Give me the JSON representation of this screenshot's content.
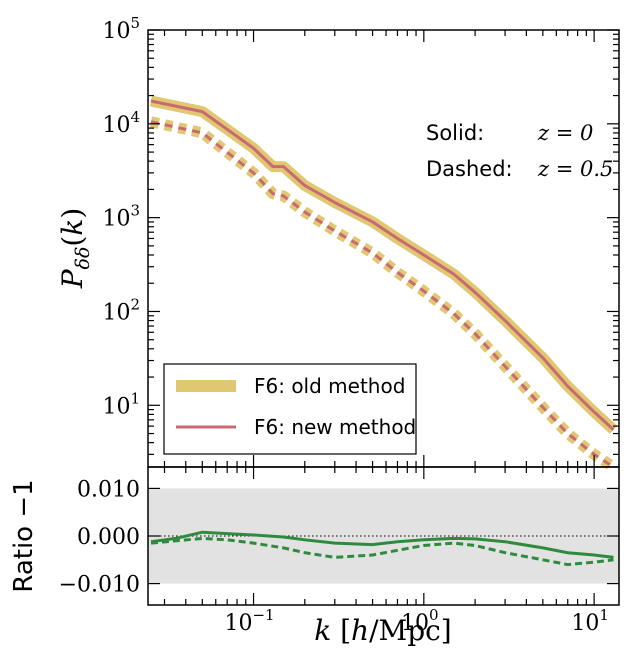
{
  "colors": {
    "old_method": "#e0c872",
    "new_method": "#c96a72",
    "ratio": "#2e8b3e",
    "band": "#e2e2e2"
  },
  "annotation": {
    "solid_label": "Solid:",
    "solid_z": "z = 0",
    "dashed_label": "Dashed:",
    "dashed_z": "z = 0.5"
  },
  "legend": {
    "old": "F6: old method",
    "new": "F6: new method"
  },
  "chart_data": [
    {
      "type": "line",
      "ylabel": "P_δδ(k)",
      "xscale": "log",
      "yscale": "log",
      "xlim": [
        0.024,
        14
      ],
      "ylim": [
        2.2,
        100000
      ],
      "x_ticks": [
        "10^-1",
        "10^0",
        "10^1"
      ],
      "y_ticks": [
        "10^1",
        "10^2",
        "10^3",
        "10^4",
        "10^5"
      ],
      "series": [
        {
          "name": "F6: old method",
          "linestyle": "solid",
          "x": [
            0.025,
            0.05,
            0.1,
            0.13,
            0.15,
            0.2,
            0.3,
            0.5,
            0.7,
            1.0,
            1.5,
            2.0,
            3.0,
            5.0,
            7.0,
            10.0,
            13.0
          ],
          "y": [
            17500,
            13500,
            5500,
            3500,
            3500,
            2200,
            1450,
            900,
            600,
            400,
            250,
            160,
            80,
            32,
            16,
            8.5,
            5.5
          ]
        },
        {
          "name": "F6: new method",
          "linestyle": "solid",
          "x": [
            0.025,
            0.05,
            0.1,
            0.13,
            0.15,
            0.2,
            0.3,
            0.5,
            0.7,
            1.0,
            1.5,
            2.0,
            3.0,
            5.0,
            7.0,
            10.0,
            13.0
          ],
          "y": [
            17500,
            13500,
            5500,
            3500,
            3500,
            2200,
            1450,
            900,
            600,
            400,
            250,
            160,
            80,
            32,
            16,
            8.5,
            5.5
          ]
        },
        {
          "name": "F6: old method",
          "linestyle": "dashed",
          "x": [
            0.025,
            0.05,
            0.1,
            0.13,
            0.15,
            0.2,
            0.3,
            0.5,
            0.7,
            1.0,
            1.5,
            2.0,
            3.0,
            5.0,
            7.0,
            10.0,
            13.0
          ],
          "y": [
            10500,
            8000,
            3000,
            1800,
            1700,
            1150,
            720,
            420,
            260,
            165,
            95,
            58,
            26,
            9.5,
            5.0,
            3.0,
            2.2
          ]
        },
        {
          "name": "F6: new method",
          "linestyle": "dashed",
          "x": [
            0.025,
            0.05,
            0.1,
            0.13,
            0.15,
            0.2,
            0.3,
            0.5,
            0.7,
            1.0,
            1.5,
            2.0,
            3.0,
            5.0,
            7.0,
            10.0,
            13.0
          ],
          "y": [
            10500,
            8000,
            3000,
            1800,
            1700,
            1150,
            720,
            420,
            260,
            165,
            95,
            58,
            26,
            9.5,
            5.0,
            3.0,
            2.2
          ]
        }
      ]
    },
    {
      "type": "line",
      "xlabel": "k [h/Mpc]",
      "ylabel": "Ratio −1",
      "xscale": "log",
      "xlim": [
        0.024,
        14
      ],
      "ylim": [
        -0.0145,
        0.0145
      ],
      "y_ticks": [
        "0.010",
        "0.000",
        "−0.010"
      ],
      "band": [
        -0.01,
        0.01
      ],
      "series": [
        {
          "linestyle": "solid",
          "x": [
            0.025,
            0.035,
            0.05,
            0.07,
            0.1,
            0.15,
            0.2,
            0.3,
            0.5,
            0.7,
            1.0,
            1.5,
            2.0,
            3.0,
            5.0,
            7.0,
            10.0,
            13.0
          ],
          "y": [
            -0.0012,
            -0.0005,
            0.0008,
            0.0005,
            0.0002,
            -0.0002,
            -0.0008,
            -0.0015,
            -0.0018,
            -0.0012,
            -0.0008,
            -0.0005,
            -0.0006,
            -0.0012,
            -0.0025,
            -0.0035,
            -0.004,
            -0.0045
          ]
        },
        {
          "linestyle": "dashed",
          "x": [
            0.025,
            0.035,
            0.05,
            0.07,
            0.1,
            0.15,
            0.2,
            0.3,
            0.5,
            0.7,
            1.0,
            1.5,
            2.0,
            3.0,
            5.0,
            7.0,
            10.0,
            13.0
          ],
          "y": [
            -0.0015,
            -0.001,
            -0.0005,
            -0.0008,
            -0.0015,
            -0.0025,
            -0.0035,
            -0.0045,
            -0.004,
            -0.003,
            -0.002,
            -0.0015,
            -0.002,
            -0.0035,
            -0.005,
            -0.006,
            -0.0055,
            -0.005
          ]
        }
      ]
    }
  ]
}
